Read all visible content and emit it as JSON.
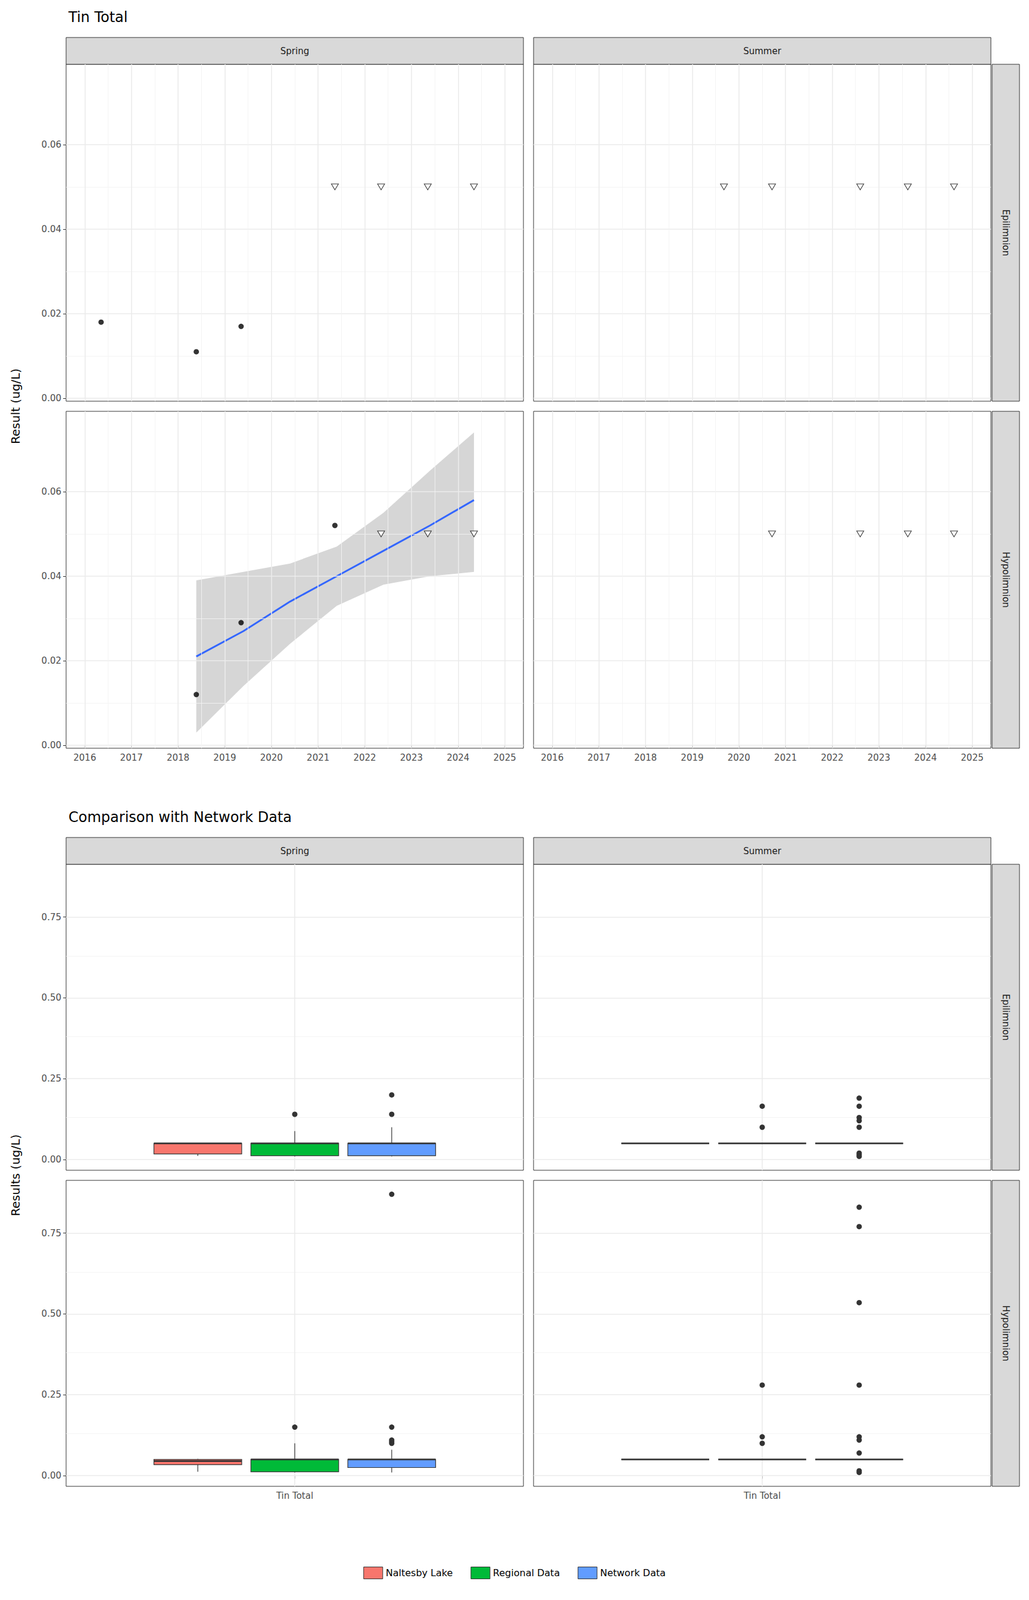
{
  "chart_data": [
    {
      "type": "scatter",
      "title": "Tin Total",
      "y_label": "Result (ug/L)",
      "columns": [
        "Spring",
        "Summer"
      ],
      "rows": [
        "Epilimnion",
        "Hypolimnion"
      ],
      "xlim": [
        2015.6,
        2025.4
      ],
      "xticks": [
        2016,
        2017,
        2018,
        2019,
        2020,
        2021,
        2022,
        2023,
        2024,
        2025
      ],
      "ylim": [
        -0.0007,
        0.079
      ],
      "yticks": [
        {
          "value": 0,
          "label": "0.00"
        },
        0.02,
        0.04,
        0.06
      ],
      "grid": true,
      "panels": [
        {
          "column": "Spring",
          "row": "Epilimnion",
          "series": [
            {
              "type": "scatter",
              "marker": "circle",
              "color": "#000000",
              "x": [
                2016.35,
                2018.39,
                2019.35
              ],
              "values": [
                0.018,
                0.011,
                0.017
              ]
            },
            {
              "type": "scatter",
              "marker": "triangle-down-open",
              "color": "#000000",
              "x": [
                2021.36,
                2022.35,
                2023.35,
                2024.34
              ],
              "values": [
                0.05,
                0.05,
                0.05,
                0.05
              ]
            }
          ]
        },
        {
          "column": "Summer",
          "row": "Epilimnion",
          "series": [
            {
              "type": "scatter",
              "marker": "triangle-down-open",
              "color": "#000000",
              "x": [
                2019.68,
                2020.71,
                2022.6,
                2023.62,
                2024.61
              ],
              "values": [
                0.05,
                0.05,
                0.05,
                0.05,
                0.05
              ]
            }
          ]
        },
        {
          "column": "Spring",
          "row": "Hypolimnion",
          "series": [
            {
              "type": "line",
              "color": "#3366FF",
              "x": [
                2018.39,
                2019.4,
                2020.4,
                2021.4,
                2022.4,
                2023.4,
                2024.34
              ],
              "values": [
                0.021,
                0.027,
                0.034,
                0.04,
                0.046,
                0.052,
                0.058
              ],
              "lower": [
                0.003,
                0.014,
                0.024,
                0.033,
                0.038,
                0.04,
                0.041
              ],
              "upper": [
                0.039,
                0.041,
                0.043,
                0.047,
                0.055,
                0.065,
                0.074
              ]
            },
            {
              "type": "scatter",
              "marker": "circle",
              "color": "#000000",
              "x": [
                2018.39,
                2019.35,
                2021.36
              ],
              "values": [
                0.012,
                0.029,
                0.052
              ]
            },
            {
              "type": "scatter",
              "marker": "triangle-down-open",
              "color": "#000000",
              "x": [
                2022.35,
                2023.35,
                2024.34
              ],
              "values": [
                0.05,
                0.05,
                0.05
              ]
            }
          ]
        },
        {
          "column": "Summer",
          "row": "Hypolimnion",
          "series": [
            {
              "type": "scatter",
              "marker": "triangle-down-open",
              "color": "#000000",
              "x": [
                2020.71,
                2022.6,
                2023.62,
                2024.61
              ],
              "values": [
                0.05,
                0.05,
                0.05,
                0.05
              ]
            }
          ]
        }
      ]
    },
    {
      "type": "boxplot",
      "title": "Comparison with Network Data",
      "y_label": "Results (ug/L)",
      "columns": [
        "Spring",
        "Summer"
      ],
      "rows": [
        "Epilimnion",
        "Hypolimnion"
      ],
      "categories": [
        "Tin Total"
      ],
      "ylim": [
        -0.033,
        0.913
      ],
      "yticks": [
        {
          "value": 0,
          "label": "0.00"
        },
        0.25,
        {
          "value": 0.5,
          "label": "0.50"
        },
        0.75
      ],
      "grid": true,
      "legend": "bottom",
      "series": [
        {
          "name": "Naltesby Lake",
          "color": "#F8766D"
        },
        {
          "name": "Regional Data",
          "color": "#00BA38"
        },
        {
          "name": "Network Data",
          "color": "#619CFF"
        }
      ],
      "panels": [
        {
          "column": "Spring",
          "row": "Epilimnion",
          "boxes": [
            {
              "name": "Naltesby Lake",
              "values": [
                0.011,
                0.0175,
                0.05,
                0.05,
                0.05
              ],
              "outliers": []
            },
            {
              "name": "Regional Data",
              "values": [
                0.01,
                0.012,
                0.05,
                0.05,
                0.088
              ],
              "outliers": [
                0.14
              ]
            },
            {
              "name": "Network Data",
              "values": [
                0.01,
                0.012,
                0.05,
                0.05,
                0.1
              ],
              "outliers": [
                0.14,
                0.2
              ]
            }
          ]
        },
        {
          "column": "Summer",
          "row": "Epilimnion",
          "boxes": [
            {
              "name": "Naltesby Lake",
              "values": [
                0.05,
                0.05,
                0.05,
                0.05,
                0.05
              ],
              "outliers": []
            },
            {
              "name": "Regional Data",
              "values": [
                0.05,
                0.05,
                0.05,
                0.05,
                0.05
              ],
              "outliers": [
                0.1,
                0.165
              ]
            },
            {
              "name": "Network Data",
              "values": [
                0.05,
                0.05,
                0.05,
                0.05,
                0.05
              ],
              "outliers": [
                0.19,
                0.165,
                0.13,
                0.12,
                0.1,
                0.02,
                0.015,
                0.01
              ]
            }
          ]
        },
        {
          "column": "Spring",
          "row": "Hypolimnion",
          "boxes": [
            {
              "name": "Naltesby Lake",
              "values": [
                0.012,
                0.034,
                0.045,
                0.05,
                0.052
              ],
              "outliers": []
            },
            {
              "name": "Regional Data",
              "values": [
                0.01,
                0.012,
                0.05,
                0.05,
                0.1
              ],
              "outliers": [
                0.15
              ]
            },
            {
              "name": "Network Data",
              "values": [
                0.01,
                0.025,
                0.05,
                0.05,
                0.08
              ],
              "outliers": [
                0.1,
                0.105,
                0.11,
                0.15,
                0.87
              ]
            }
          ]
        },
        {
          "column": "Summer",
          "row": "Hypolimnion",
          "boxes": [
            {
              "name": "Naltesby Lake",
              "values": [
                0.05,
                0.05,
                0.05,
                0.05,
                0.05
              ],
              "outliers": []
            },
            {
              "name": "Regional Data",
              "values": [
                0.05,
                0.05,
                0.05,
                0.05,
                0.05
              ],
              "outliers": [
                0.28,
                0.12,
                0.1
              ]
            },
            {
              "name": "Network Data",
              "values": [
                0.05,
                0.05,
                0.05,
                0.05,
                0.05
              ],
              "outliers": [
                0.83,
                0.77,
                0.535,
                0.28,
                0.12,
                0.11,
                0.07,
                0.015,
                0.01
              ]
            }
          ]
        }
      ]
    }
  ]
}
